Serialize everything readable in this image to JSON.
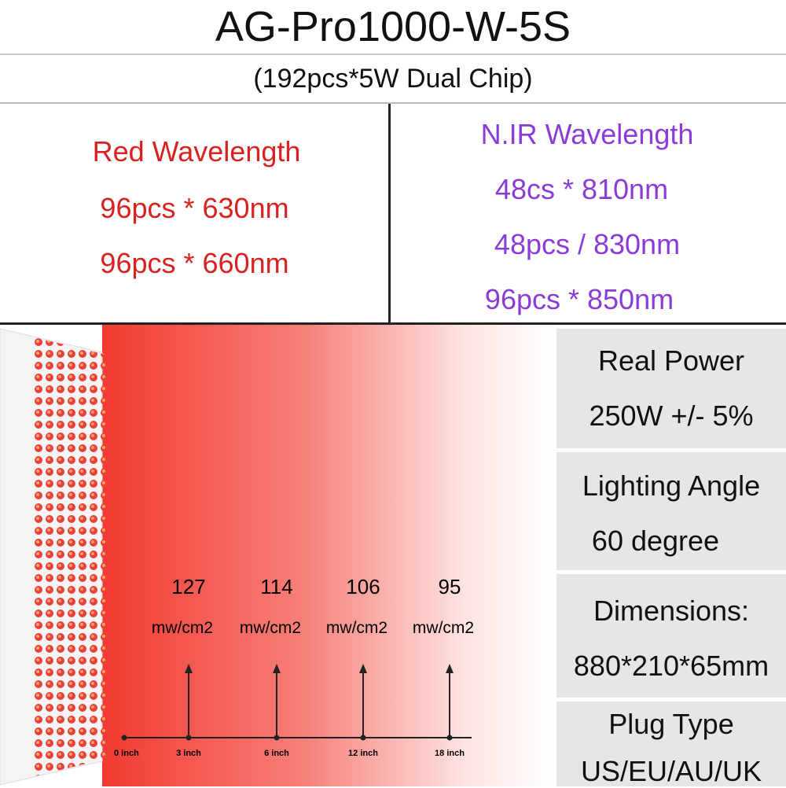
{
  "header": {
    "title": "AG-Pro1000-W-5S",
    "subtitle": "(192pcs*5W Dual Chip)"
  },
  "wavelengths": {
    "red": {
      "heading": "Red Wavelength",
      "lines": [
        "96pcs * 630nm",
        "96pcs * 660nm"
      ]
    },
    "nir": {
      "heading": "N.IR Wavelength",
      "lines": [
        "48cs * 810nm",
        "48pcs / 830nm",
        "96pcs * 850nm"
      ]
    }
  },
  "irradiance": {
    "origin": "0 inch",
    "points": [
      {
        "value": 127,
        "unit": "mw/cm2",
        "distance": "3 inch"
      },
      {
        "value": 114,
        "unit": "mw/cm2",
        "distance": "6 inch"
      },
      {
        "value": 106,
        "unit": "mw/cm2",
        "distance": "12 inch"
      },
      {
        "value": 95,
        "unit": "mw/cm2",
        "distance": "18 inch"
      }
    ]
  },
  "specs": [
    {
      "label": "Real Power",
      "value": "250W +/- 5%"
    },
    {
      "label": "Lighting Angle",
      "value": "60 degree"
    },
    {
      "label": "Dimensions:",
      "value": "880*210*65mm"
    },
    {
      "label": "Plug Type",
      "value": "US/EU/AU/UK"
    }
  ]
}
